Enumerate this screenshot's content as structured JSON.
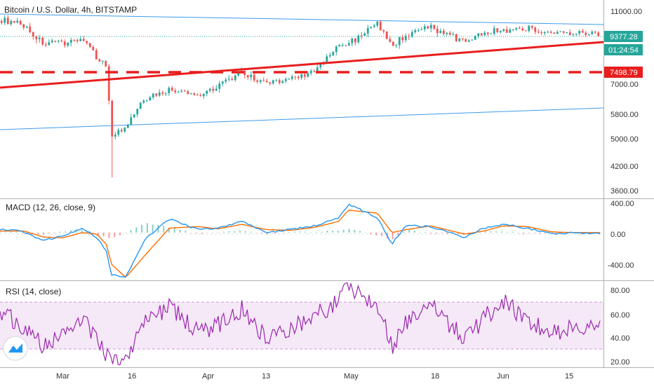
{
  "header": {
    "symbol_title": "Bitcoin / U.S. Dollar, 4h, BITSTAMP"
  },
  "price_panel": {
    "last_price": "9377.28",
    "countdown": "01:24:54",
    "support_price": "7498.79",
    "colors": {
      "up": "#26a69a",
      "down": "#ef5350",
      "trend": "#e81e1e",
      "channel": "#3d9be9",
      "label_bg": "#26a69a"
    }
  },
  "macd_panel": {
    "title": "MACD (12, 26, close, 9)",
    "colors": {
      "macd": "#2196f3",
      "signal": "#ff6d00",
      "hist_up": "#26a69a",
      "hist_down": "#ef5350"
    }
  },
  "rsi_panel": {
    "title": "RSI (14, close)",
    "colors": {
      "line": "#9c27b0",
      "band": "#9c27b0"
    }
  },
  "chart_data": [
    {
      "type": "candlestick",
      "title": "Bitcoin / U.S. Dollar, 4h, BITSTAMP",
      "x_tick_labels": [
        "Mar",
        "16",
        "Apr",
        "13",
        "May",
        "18",
        "Jun",
        "15"
      ],
      "y_tick_labels": [
        "11000.00",
        "7000.00",
        "5800.00",
        "5000.00",
        "4200.00",
        "3600.00"
      ],
      "ylim": [
        3400,
        11400
      ],
      "scale": "log",
      "x": [
        "2020-02-20",
        "2020-02-24",
        "2020-02-28",
        "2020-03-03",
        "2020-03-07",
        "2020-03-10",
        "2020-03-12",
        "2020-03-13",
        "2020-03-16",
        "2020-03-20",
        "2020-03-25",
        "2020-03-31",
        "2020-04-04",
        "2020-04-09",
        "2020-04-14",
        "2020-04-19",
        "2020-04-24",
        "2020-04-29",
        "2020-05-01",
        "2020-05-07",
        "2020-05-10",
        "2020-05-13",
        "2020-05-18",
        "2020-05-25",
        "2020-05-29",
        "2020-06-02",
        "2020-06-07",
        "2020-06-12",
        "2020-06-16",
        "2020-06-20"
      ],
      "close": [
        10100,
        9800,
        8750,
        8850,
        9050,
        8100,
        7600,
        5000,
        5200,
        6300,
        6600,
        6400,
        6800,
        7300,
        6850,
        7100,
        7400,
        8650,
        8800,
        9900,
        8650,
        9300,
        9700,
        8900,
        9450,
        9550,
        9700,
        9350,
        9450,
        9377
      ],
      "annotations": {
        "last_price": 9377.28,
        "horizontal_support": 7498.79,
        "min_low": 3850,
        "max_high": 10380
      }
    },
    {
      "type": "macd",
      "title": "MACD (12, 26, close, 9)",
      "y_tick_labels": [
        "400.00",
        "0.00",
        "-400.00"
      ],
      "ylim": [
        -620,
        420
      ],
      "x": [
        "2020-02-20",
        "2020-02-24",
        "2020-02-28",
        "2020-03-03",
        "2020-03-07",
        "2020-03-10",
        "2020-03-12",
        "2020-03-13",
        "2020-03-16",
        "2020-03-20",
        "2020-03-25",
        "2020-03-31",
        "2020-04-04",
        "2020-04-09",
        "2020-04-14",
        "2020-04-19",
        "2020-04-24",
        "2020-04-29",
        "2020-05-01",
        "2020-05-07",
        "2020-05-10",
        "2020-05-13",
        "2020-05-18",
        "2020-05-25",
        "2020-05-29",
        "2020-06-02",
        "2020-06-07",
        "2020-06-12",
        "2020-06-16",
        "2020-06-20"
      ],
      "series": [
        {
          "values": [
            40,
            10,
            -110,
            -40,
            50,
            -60,
            -250,
            -560,
            -600,
            -80,
            180,
            40,
            60,
            150,
            0,
            40,
            90,
            190,
            380,
            200,
            -150,
            100,
            80,
            -60,
            60,
            110,
            60,
            -20,
            0,
            -5
          ]
        },
        {
          "values": [
            20,
            20,
            -60,
            -70,
            0,
            -20,
            -160,
            -420,
            -600,
            -300,
            60,
            80,
            50,
            110,
            40,
            30,
            70,
            150,
            300,
            260,
            0,
            40,
            90,
            -20,
            20,
            90,
            80,
            10,
            0,
            0
          ]
        }
      ]
    },
    {
      "type": "line",
      "title": "RSI (14, close)",
      "y_tick_labels": [
        "80.00",
        "60.00",
        "40.00",
        "20.00"
      ],
      "ylim": [
        18,
        88
      ],
      "bands": [
        30,
        70
      ],
      "x": [
        "2020-02-20",
        "2020-02-24",
        "2020-02-28",
        "2020-03-03",
        "2020-03-07",
        "2020-03-10",
        "2020-03-12",
        "2020-03-13",
        "2020-03-16",
        "2020-03-20",
        "2020-03-25",
        "2020-03-31",
        "2020-04-04",
        "2020-04-09",
        "2020-04-14",
        "2020-04-19",
        "2020-04-24",
        "2020-04-29",
        "2020-05-01",
        "2020-05-07",
        "2020-05-10",
        "2020-05-13",
        "2020-05-18",
        "2020-05-25",
        "2020-05-29",
        "2020-06-02",
        "2020-06-07",
        "2020-06-12",
        "2020-06-16",
        "2020-06-20"
      ],
      "values": [
        62,
        48,
        35,
        44,
        60,
        38,
        28,
        20,
        24,
        55,
        68,
        45,
        52,
        66,
        42,
        50,
        60,
        72,
        85,
        70,
        35,
        55,
        68,
        40,
        58,
        72,
        55,
        45,
        50,
        52
      ]
    }
  ]
}
